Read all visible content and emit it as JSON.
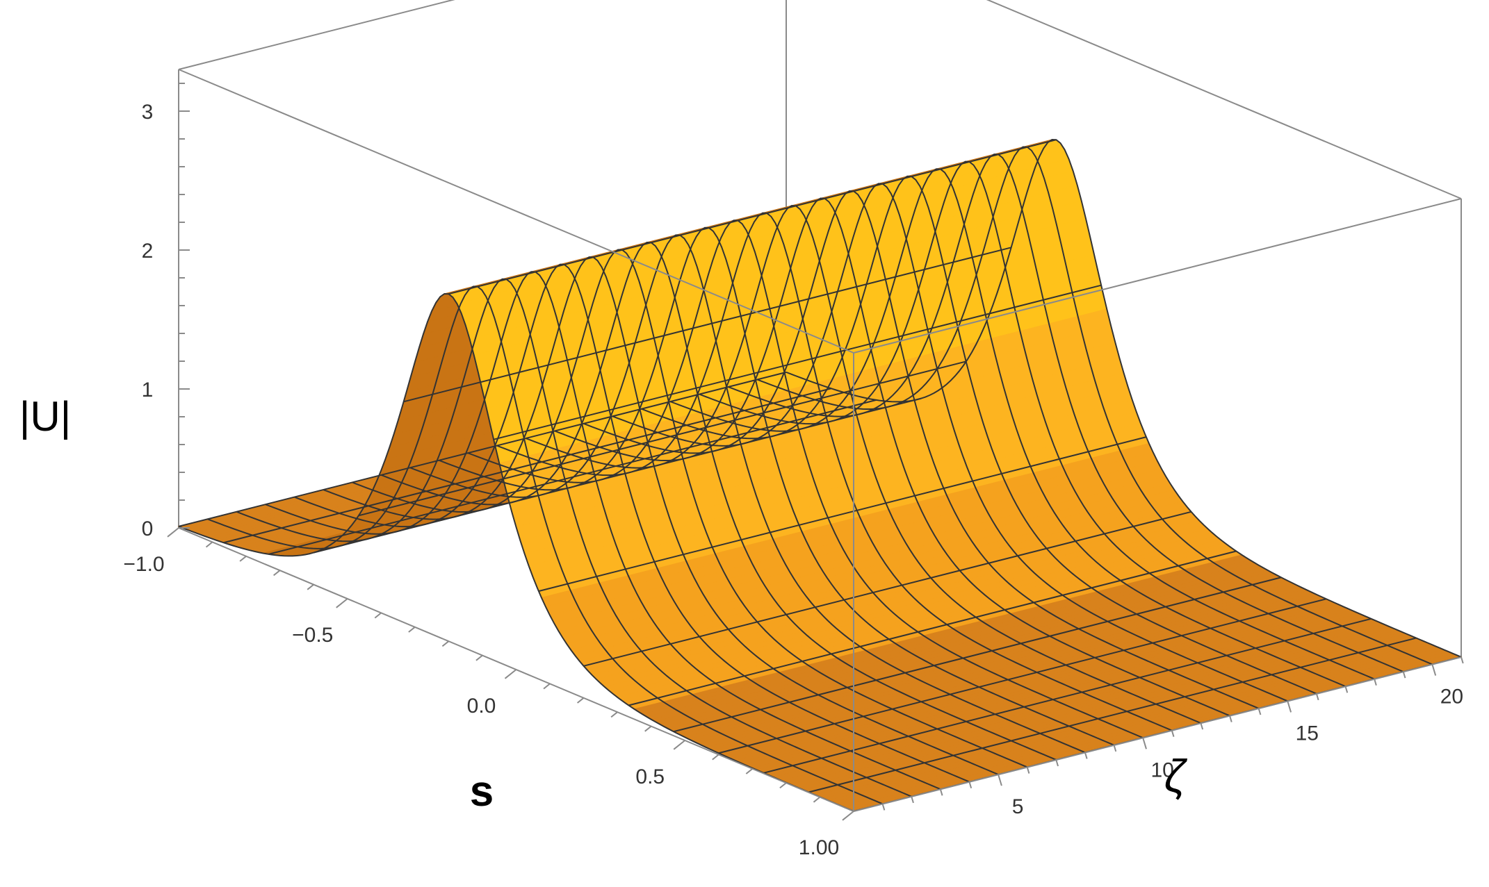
{
  "chart_data": {
    "type": "surface3d",
    "title": "",
    "xlabel": "s",
    "ylabel": "ζ",
    "zlabel": "|U|",
    "xlim": [
      -1.0,
      1.0
    ],
    "ylim": [
      0,
      21
    ],
    "zlim": [
      0,
      3.3
    ],
    "x_ticks": [
      -1.0,
      -0.5,
      0.0,
      0.5,
      1.0
    ],
    "x_tick_labels": [
      "−1.0",
      "−0.5",
      "0.0",
      "0.5",
      "1.00"
    ],
    "y_ticks": [
      5,
      10,
      15,
      20
    ],
    "y_tick_labels": [
      "5",
      "10",
      "15",
      "20"
    ],
    "z_ticks": [
      0,
      1,
      2,
      3
    ],
    "z_tick_labels": [
      "0",
      "1",
      "2",
      "3"
    ],
    "surface": {
      "description_function": "sech-shaped soliton ridge, constant along ζ",
      "peak_s": -0.2,
      "peak_amplitude": 2.5,
      "width_s": 0.13,
      "s_samples": [
        -1.0,
        -0.8,
        -0.6,
        -0.5,
        -0.4,
        -0.3,
        -0.25,
        -0.2,
        -0.15,
        -0.1,
        0.0,
        0.1,
        0.2,
        0.3,
        0.5,
        0.7,
        1.0
      ],
      "amplitude_samples": [
        0.0,
        0.0,
        0.02,
        0.06,
        0.33,
        1.15,
        1.9,
        2.5,
        1.9,
        1.15,
        0.33,
        0.09,
        0.03,
        0.01,
        0.0,
        0.0,
        0.0
      ],
      "mesh_lines_s": 15,
      "mesh_lines_zeta": 21
    },
    "grid": false,
    "colors": {
      "surface_light": "#ffc21a",
      "surface_mid": "#f5a21e",
      "surface_dark": "#d9780f",
      "floor": "#d8821c",
      "mesh": "#333333",
      "box": "#8a8a8a"
    }
  }
}
